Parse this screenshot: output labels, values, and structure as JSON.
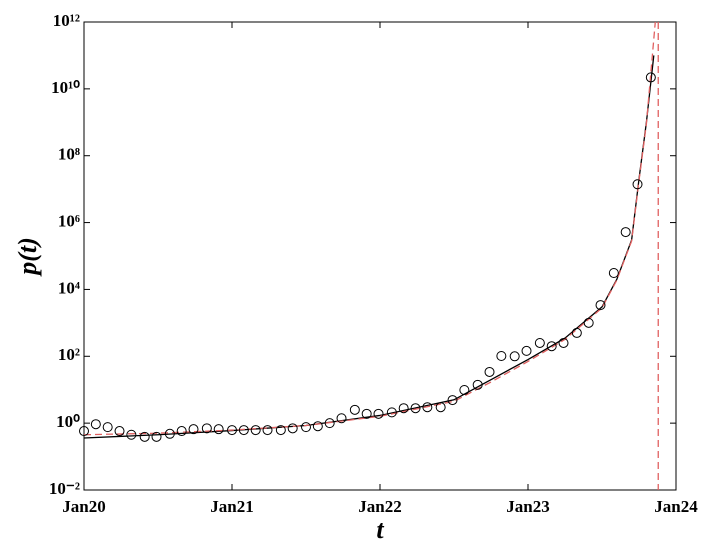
{
  "chart_data": {
    "type": "scatter-line",
    "xlabel": "t",
    "ylabel": "p(t)",
    "xlim": [
      20,
      24
    ],
    "xticks": [
      {
        "value": 20,
        "label": "Jan20"
      },
      {
        "value": 21,
        "label": "Jan21"
      },
      {
        "value": 22,
        "label": "Jan22"
      },
      {
        "value": 23,
        "label": "Jan23"
      },
      {
        "value": 24,
        "label": "Jan24"
      }
    ],
    "ylim": [
      0.01,
      1000000000000
    ],
    "log_y": true,
    "yticks": [
      {
        "value": 0.01,
        "label": "10⁻²"
      },
      {
        "value": 1,
        "label": "10⁰"
      },
      {
        "value": 100,
        "label": "10²"
      },
      {
        "value": 10000,
        "label": "10⁴"
      },
      {
        "value": 1000000,
        "label": "10⁶"
      },
      {
        "value": 100000000,
        "label": "10⁸"
      },
      {
        "value": 10000000000,
        "label": "10¹⁰"
      },
      {
        "value": 1000000000000,
        "label": "10¹²"
      }
    ],
    "series": [
      {
        "kind": "points",
        "color": "#000000",
        "x": [
          20.0,
          20.08,
          20.16,
          20.24,
          20.32,
          20.41,
          20.49,
          20.58,
          20.66,
          20.74,
          20.83,
          20.91,
          21.0,
          21.08,
          21.16,
          21.24,
          21.33,
          21.41,
          21.5,
          21.58,
          21.66,
          21.74,
          21.83,
          21.91,
          21.99,
          22.08,
          22.16,
          22.24,
          22.32,
          22.41,
          22.49,
          22.57,
          22.66,
          22.74,
          22.82,
          22.91,
          22.99,
          23.08,
          23.16,
          23.24,
          23.33,
          23.41,
          23.49,
          23.58,
          23.66,
          23.74,
          23.83
        ],
        "values": [
          0.58,
          0.93,
          0.76,
          0.58,
          0.45,
          0.39,
          0.39,
          0.48,
          0.58,
          0.66,
          0.7,
          0.66,
          0.62,
          0.62,
          0.62,
          0.62,
          0.62,
          0.7,
          0.76,
          0.81,
          1.0,
          1.4,
          2.5,
          1.9,
          1.9,
          2.1,
          2.8,
          2.8,
          3.0,
          3.0,
          4.9,
          9.8,
          14,
          34,
          102,
          100,
          145,
          250,
          200,
          250,
          500,
          1000,
          3400,
          31000,
          520000,
          14000000,
          22000000000
        ]
      },
      {
        "kind": "line",
        "color": "#000000",
        "dash": false,
        "x": [
          20.0,
          20.5,
          21.0,
          21.5,
          22.0,
          22.5,
          22.75,
          23.0,
          23.25,
          23.5,
          23.6,
          23.7,
          23.75,
          23.8,
          23.85
        ],
        "values": [
          0.36,
          0.45,
          0.6,
          0.85,
          1.7,
          5,
          20,
          80,
          350,
          3000,
          20000,
          300000,
          20000000,
          1000000000,
          100000000000
        ]
      },
      {
        "kind": "line",
        "color": "#e06060",
        "dash": true,
        "x": [
          20.0,
          20.5,
          21.0,
          21.5,
          22.0,
          22.5,
          22.75,
          23.0,
          23.25,
          23.5,
          23.6,
          23.7,
          23.75,
          23.8,
          23.86,
          23.87,
          23.88,
          23.88
        ],
        "values": [
          0.45,
          0.5,
          0.62,
          0.85,
          1.6,
          4.5,
          17,
          70,
          320,
          2800,
          19000,
          280000,
          18000000,
          900000000,
          1000000000000,
          null,
          1000000000000,
          0.01
        ]
      }
    ]
  }
}
